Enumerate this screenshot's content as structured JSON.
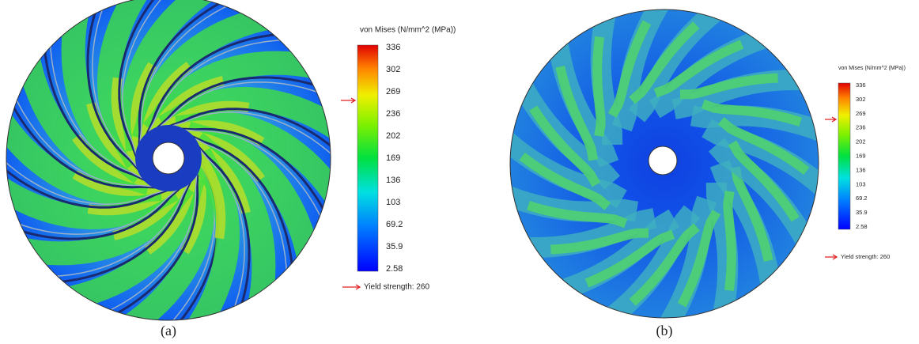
{
  "panels": [
    {
      "caption": "(a)",
      "legend": {
        "title": "von Mises (N/mm^2 (MPa))",
        "ticks": [
          "336",
          "302",
          "269",
          "236",
          "202",
          "169",
          "136",
          "103",
          "69.2",
          "35.9",
          "2.58"
        ],
        "yield_label": "Yield strength: 260"
      }
    },
    {
      "caption": "(b)",
      "legend": {
        "title": "von Mises (N/mm^2 (MPa))",
        "ticks": [
          "336",
          "302",
          "269",
          "236",
          "202",
          "169",
          "136",
          "103",
          "69.2",
          "35.9",
          "2.58"
        ],
        "yield_label": "Yield strength: 260"
      }
    }
  ]
}
